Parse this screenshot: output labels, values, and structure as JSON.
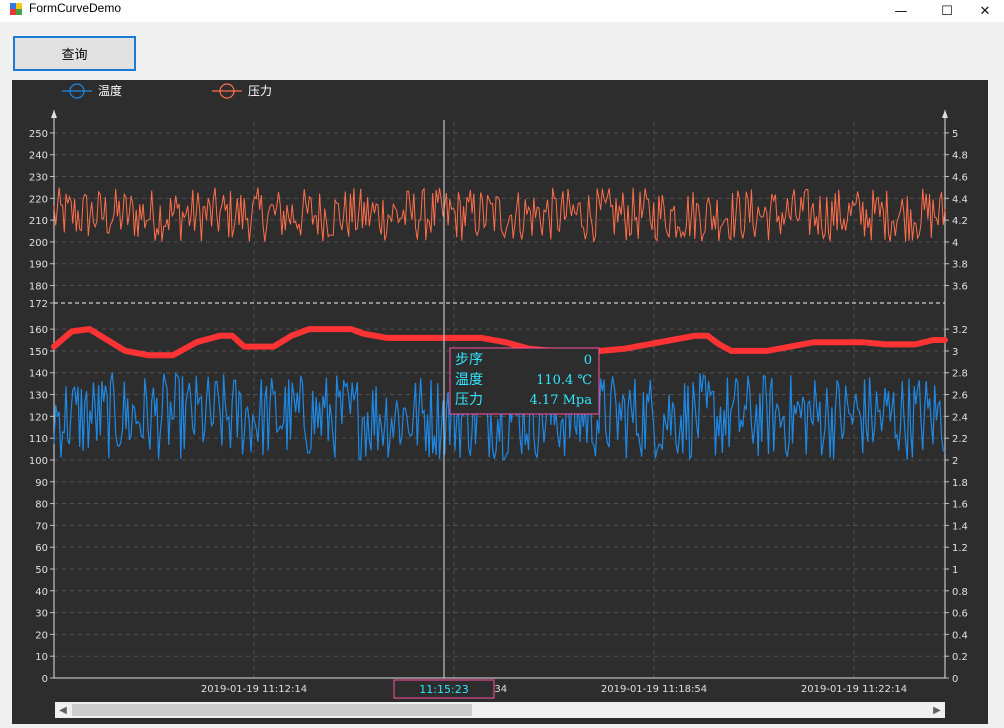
{
  "window": {
    "title": "FormCurveDemo",
    "minimize_glyph": "—",
    "maximize_glyph": "☐",
    "close_glyph": "✕"
  },
  "toolbar": {
    "query_label": "查询"
  },
  "colors": {
    "background": "#2d2d2d",
    "temperature": "#1e88e5",
    "pressure": "#ff6e4a",
    "thick_line": "#ff3333",
    "marker_line": "#e0e0e0",
    "tooltip_text": "#33e6ff",
    "tooltip_border": "#ff4fa1"
  },
  "scrollbar": {
    "left_glyph": "◀",
    "right_glyph": "▶"
  },
  "chart_data": {
    "type": "line",
    "legend": [
      "温度",
      "压力"
    ],
    "left_axis": {
      "ylim": [
        0,
        255
      ],
      "ticks": [
        0,
        10,
        20,
        30,
        40,
        50,
        60,
        70,
        80,
        90,
        100,
        110,
        120,
        130,
        140,
        150,
        160,
        172,
        180,
        190,
        200,
        210,
        220,
        230,
        240,
        250
      ]
    },
    "right_axis": {
      "ylim": [
        0,
        5.1
      ],
      "ticks": [
        "0",
        "0.2",
        "0.4",
        "0.6",
        "0.8",
        "1",
        "1.2",
        "1.4",
        "1.6",
        "1.8",
        "2",
        "2.2",
        "2.4",
        "2.6",
        "2.8",
        "3",
        "3.2",
        "3.6",
        "3.8",
        "4",
        "4.2",
        "4.4",
        "4.6",
        "4.8",
        "5"
      ]
    },
    "x_tick_labels": [
      "2019-01-19 11:12:14",
      "2019-01-19 11:15:34",
      "2019-01-19 11:18:54",
      "2019-01-19 11:22:14"
    ],
    "reference_line": {
      "axis": "left",
      "value": 172
    },
    "temperature_band": {
      "min": 100,
      "max": 140
    },
    "pressure_band": {
      "min": 200,
      "max": 225
    },
    "thick_curve": [
      [
        0,
        152
      ],
      [
        3,
        159
      ],
      [
        6,
        160
      ],
      [
        12,
        150
      ],
      [
        16,
        148
      ],
      [
        20,
        148
      ],
      [
        24,
        154
      ],
      [
        28,
        157
      ],
      [
        30,
        157
      ],
      [
        32,
        152
      ],
      [
        35,
        152
      ],
      [
        37,
        152
      ],
      [
        40,
        157
      ],
      [
        43,
        160
      ],
      [
        46,
        160
      ],
      [
        50,
        160
      ],
      [
        52,
        158
      ],
      [
        56,
        156
      ],
      [
        60,
        156
      ],
      [
        64,
        156
      ],
      [
        68,
        156
      ],
      [
        72,
        156
      ],
      [
        76,
        154
      ],
      [
        80,
        151
      ],
      [
        84,
        150
      ],
      [
        88,
        150
      ],
      [
        92,
        150
      ],
      [
        96,
        151
      ],
      [
        100,
        153
      ],
      [
        104,
        155
      ],
      [
        108,
        157
      ],
      [
        110,
        157
      ],
      [
        112,
        153
      ],
      [
        114,
        150
      ],
      [
        116,
        150
      ],
      [
        120,
        150
      ],
      [
        124,
        152
      ],
      [
        128,
        154
      ],
      [
        130,
        154
      ],
      [
        132,
        154
      ],
      [
        136,
        154
      ],
      [
        140,
        153
      ],
      [
        142,
        153
      ],
      [
        145,
        153
      ],
      [
        148,
        155
      ],
      [
        150,
        155
      ]
    ],
    "cursor": {
      "step_label": "步序",
      "step_value": "0",
      "temperature_label": "温度",
      "temperature_value": "110.4 ℃",
      "pressure_label": "压力",
      "pressure_value": "4.17 Mpa",
      "time_label": "11:15:23"
    }
  }
}
